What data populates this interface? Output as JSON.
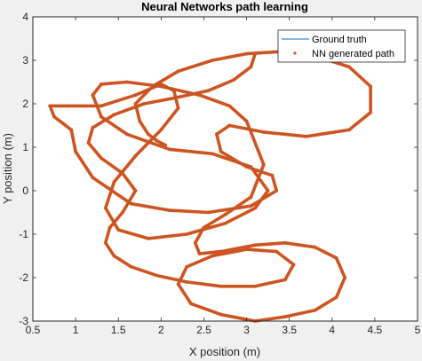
{
  "chart_data": {
    "type": "line",
    "title": "Neural Networks path learning",
    "xlabel": "X position (m)",
    "ylabel": "Y position (m)",
    "xlim": [
      0.5,
      5
    ],
    "ylim": [
      -3,
      4
    ],
    "xticks": [
      "0.5",
      "1",
      "1.5",
      "2",
      "2.5",
      "3",
      "3.5",
      "4",
      "4.5",
      "5"
    ],
    "yticks": [
      "-3",
      "-2",
      "-1",
      "0",
      "1",
      "2",
      "3",
      "4"
    ],
    "grid": false,
    "legend_position": "top-right",
    "colors": {
      "ground_truth": "#0072bd",
      "nn_path": "#d95319"
    },
    "series": [
      {
        "name": "Ground truth",
        "style": "line",
        "x": [
          2.05,
          1.95,
          1.85,
          1.75,
          1.7,
          1.9,
          2.2,
          2.6,
          3.0,
          3.4,
          3.8,
          4.2,
          4.45,
          4.45,
          4.2,
          3.7,
          3.2,
          2.8,
          2.65,
          2.7,
          3.0,
          3.3,
          3.35,
          3.05,
          2.55,
          2.1,
          1.65,
          1.2,
          1.0,
          0.95,
          0.75,
          0.7,
          0.9,
          1.3,
          1.7,
          2.0,
          2.15,
          2.2,
          2.0,
          1.7,
          1.45,
          1.35,
          1.5,
          1.85,
          2.3,
          2.75,
          3.1,
          3.25,
          3.05,
          2.6,
          2.1,
          1.6,
          1.3,
          1.2,
          1.3,
          1.6,
          2.0,
          2.45,
          2.8,
          3.0,
          3.2,
          3.05,
          2.75,
          2.5,
          2.4,
          2.45,
          2.7,
          3.1,
          3.45,
          3.8,
          4.05,
          4.15,
          4.05,
          3.8,
          3.45,
          3.1,
          2.7,
          2.35,
          2.2,
          2.3,
          2.6,
          3.0,
          3.35,
          3.55,
          3.45,
          3.1,
          2.7,
          2.3,
          1.95,
          1.65,
          1.45,
          1.35,
          1.4,
          1.55,
          1.7,
          1.55,
          1.3,
          1.15,
          1.2,
          1.45,
          1.8,
          2.2,
          2.55,
          2.85,
          3.05,
          3.1
        ],
        "y": [
          1.05,
          1.15,
          1.3,
          1.6,
          2.0,
          2.4,
          2.75,
          3.0,
          3.15,
          3.2,
          3.1,
          2.85,
          2.4,
          1.8,
          1.4,
          1.25,
          1.35,
          1.5,
          1.3,
          0.9,
          0.55,
          0.35,
          0.0,
          -0.35,
          -0.5,
          -0.45,
          -0.3,
          0.3,
          0.9,
          1.4,
          1.7,
          1.95,
          1.95,
          1.95,
          2.2,
          2.45,
          2.3,
          1.9,
          1.4,
          0.8,
          0.2,
          -0.4,
          -0.9,
          -1.1,
          -1.0,
          -0.75,
          -0.4,
          0.0,
          0.55,
          0.85,
          0.95,
          1.3,
          1.7,
          2.2,
          2.45,
          2.5,
          2.4,
          2.2,
          1.95,
          1.6,
          0.6,
          -0.15,
          -0.55,
          -0.85,
          -1.2,
          -1.45,
          -1.4,
          -1.25,
          -1.2,
          -1.3,
          -1.55,
          -2.0,
          -2.45,
          -2.75,
          -2.9,
          -3.0,
          -2.85,
          -2.6,
          -2.15,
          -1.75,
          -1.5,
          -1.35,
          -1.4,
          -1.7,
          -2.05,
          -2.2,
          -2.2,
          -2.1,
          -1.95,
          -1.75,
          -1.5,
          -1.2,
          -0.85,
          -0.5,
          0.0,
          0.4,
          0.75,
          1.1,
          1.45,
          1.75,
          2.0,
          2.15,
          2.3,
          2.55,
          2.85,
          3.15
        ]
      },
      {
        "name": "NN generated path",
        "style": "markers",
        "x": [
          2.05,
          1.95,
          1.85,
          1.75,
          1.7,
          1.9,
          2.2,
          2.6,
          3.0,
          3.4,
          3.8,
          4.2,
          4.45,
          4.45,
          4.2,
          3.7,
          3.2,
          2.8,
          2.65,
          2.7,
          3.0,
          3.3,
          3.35,
          3.05,
          2.55,
          2.1,
          1.65,
          1.2,
          1.0,
          0.95,
          0.75,
          0.7,
          0.9,
          1.3,
          1.7,
          2.0,
          2.15,
          2.2,
          2.0,
          1.7,
          1.45,
          1.35,
          1.5,
          1.85,
          2.3,
          2.75,
          3.1,
          3.25,
          3.05,
          2.6,
          2.1,
          1.6,
          1.3,
          1.2,
          1.3,
          1.6,
          2.0,
          2.45,
          2.8,
          3.0,
          3.2,
          3.05,
          2.75,
          2.5,
          2.4,
          2.45,
          2.7,
          3.1,
          3.45,
          3.8,
          4.05,
          4.15,
          4.05,
          3.8,
          3.45,
          3.1,
          2.7,
          2.35,
          2.2,
          2.3,
          2.6,
          3.0,
          3.35,
          3.55,
          3.45,
          3.1,
          2.7,
          2.3,
          1.95,
          1.65,
          1.45,
          1.35,
          1.4,
          1.55,
          1.7,
          1.55,
          1.3,
          1.15,
          1.2,
          1.45,
          1.8,
          2.2,
          2.55,
          2.85,
          3.05,
          3.1
        ],
        "y": [
          1.05,
          1.15,
          1.3,
          1.6,
          2.0,
          2.4,
          2.75,
          3.0,
          3.15,
          3.2,
          3.1,
          2.85,
          2.4,
          1.8,
          1.4,
          1.25,
          1.35,
          1.5,
          1.3,
          0.9,
          0.55,
          0.35,
          0.0,
          -0.35,
          -0.5,
          -0.45,
          -0.3,
          0.3,
          0.9,
          1.4,
          1.7,
          1.95,
          1.95,
          1.95,
          2.2,
          2.45,
          2.3,
          1.9,
          1.4,
          0.8,
          0.2,
          -0.4,
          -0.9,
          -1.1,
          -1.0,
          -0.75,
          -0.4,
          0.0,
          0.55,
          0.85,
          0.95,
          1.3,
          1.7,
          2.2,
          2.45,
          2.5,
          2.4,
          2.2,
          1.95,
          1.6,
          0.6,
          -0.15,
          -0.55,
          -0.85,
          -1.2,
          -1.45,
          -1.4,
          -1.25,
          -1.2,
          -1.3,
          -1.55,
          -2.0,
          -2.45,
          -2.75,
          -2.9,
          -3.0,
          -2.85,
          -2.6,
          -2.15,
          -1.75,
          -1.5,
          -1.35,
          -1.4,
          -1.7,
          -2.05,
          -2.2,
          -2.2,
          -2.1,
          -1.95,
          -1.75,
          -1.5,
          -1.2,
          -0.85,
          -0.5,
          0.0,
          0.4,
          0.75,
          1.1,
          1.45,
          1.75,
          2.0,
          2.15,
          2.3,
          2.55,
          2.85,
          3.15
        ]
      }
    ]
  }
}
